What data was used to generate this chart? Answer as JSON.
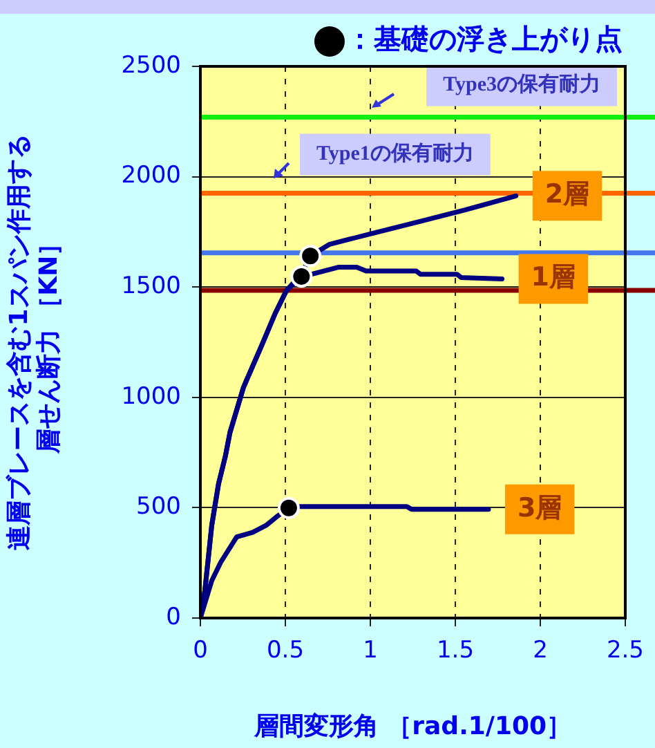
{
  "chart_data": {
    "type": "line",
    "title": null,
    "xlabel": "層間変形角 ［rad.1/100］",
    "ylabel": "連層ブレースを含む1スパン作用する層せん断力 ［KN］",
    "xlim": [
      0,
      2.5
    ],
    "xticks": [
      0,
      0.5,
      1,
      1.5,
      2,
      2.5
    ],
    "ylim": [
      0,
      2500
    ],
    "yticks": [
      0,
      500,
      1000,
      1500,
      2000,
      2500
    ],
    "grid": true,
    "legend": "top right",
    "line_style": "solid",
    "marker": "none",
    "series": [
      {
        "name": "2層",
        "color": "#000080",
        "x": [
          0,
          0.027,
          0.067,
          0.107,
          0.147,
          0.174,
          0.254,
          0.36,
          0.44,
          0.507,
          0.595,
          0.647,
          0.761,
          1.028,
          1.295,
          1.562,
          1.857
        ],
        "values": [
          0,
          127,
          420,
          608,
          733,
          840,
          1046,
          1234,
          1380,
          1485,
          1560,
          1641,
          1694,
          1746,
          1798,
          1850,
          1913
        ]
      },
      {
        "name": "1層",
        "color": "#000080",
        "x": [
          0,
          0.027,
          0.067,
          0.107,
          0.147,
          0.174,
          0.254,
          0.36,
          0.44,
          0.507,
          0.595,
          0.655,
          0.815,
          0.92,
          0.975,
          1.27,
          1.295,
          1.51,
          1.535,
          1.775
        ],
        "values": [
          0,
          127,
          420,
          608,
          733,
          840,
          1046,
          1234,
          1380,
          1485,
          1548,
          1558,
          1590,
          1590,
          1573,
          1573,
          1558,
          1558,
          1543,
          1537
        ]
      },
      {
        "name": "3層",
        "color": "#000080",
        "x": [
          0,
          0.067,
          0.12,
          0.214,
          0.307,
          0.387,
          0.454,
          0.52,
          0.575,
          1.215,
          1.242,
          1.695
        ],
        "values": [
          0,
          169,
          253,
          368,
          388,
          420,
          462,
          499,
          505,
          505,
          493,
          493
        ]
      },
      {
        "name": "：基礎の浮き上がり点",
        "type": "scatter",
        "color": "#000000",
        "marker": "circle",
        "x": [
          0.647,
          0.595,
          0.52
        ],
        "values": [
          1641,
          1548,
          499
        ]
      }
    ],
    "ref_lines": [
      {
        "axis": "y",
        "value": 2270,
        "label": "Type3の保有耐力",
        "color": "#11ee11"
      },
      {
        "axis": "y",
        "value": 1925,
        "label": "Type1の保有耐力",
        "color": "#ff6600"
      },
      {
        "axis": "y",
        "value": 1655,
        "color": "#4477ee"
      },
      {
        "axis": "y",
        "value": 1485,
        "color": "#880000"
      }
    ]
  }
}
